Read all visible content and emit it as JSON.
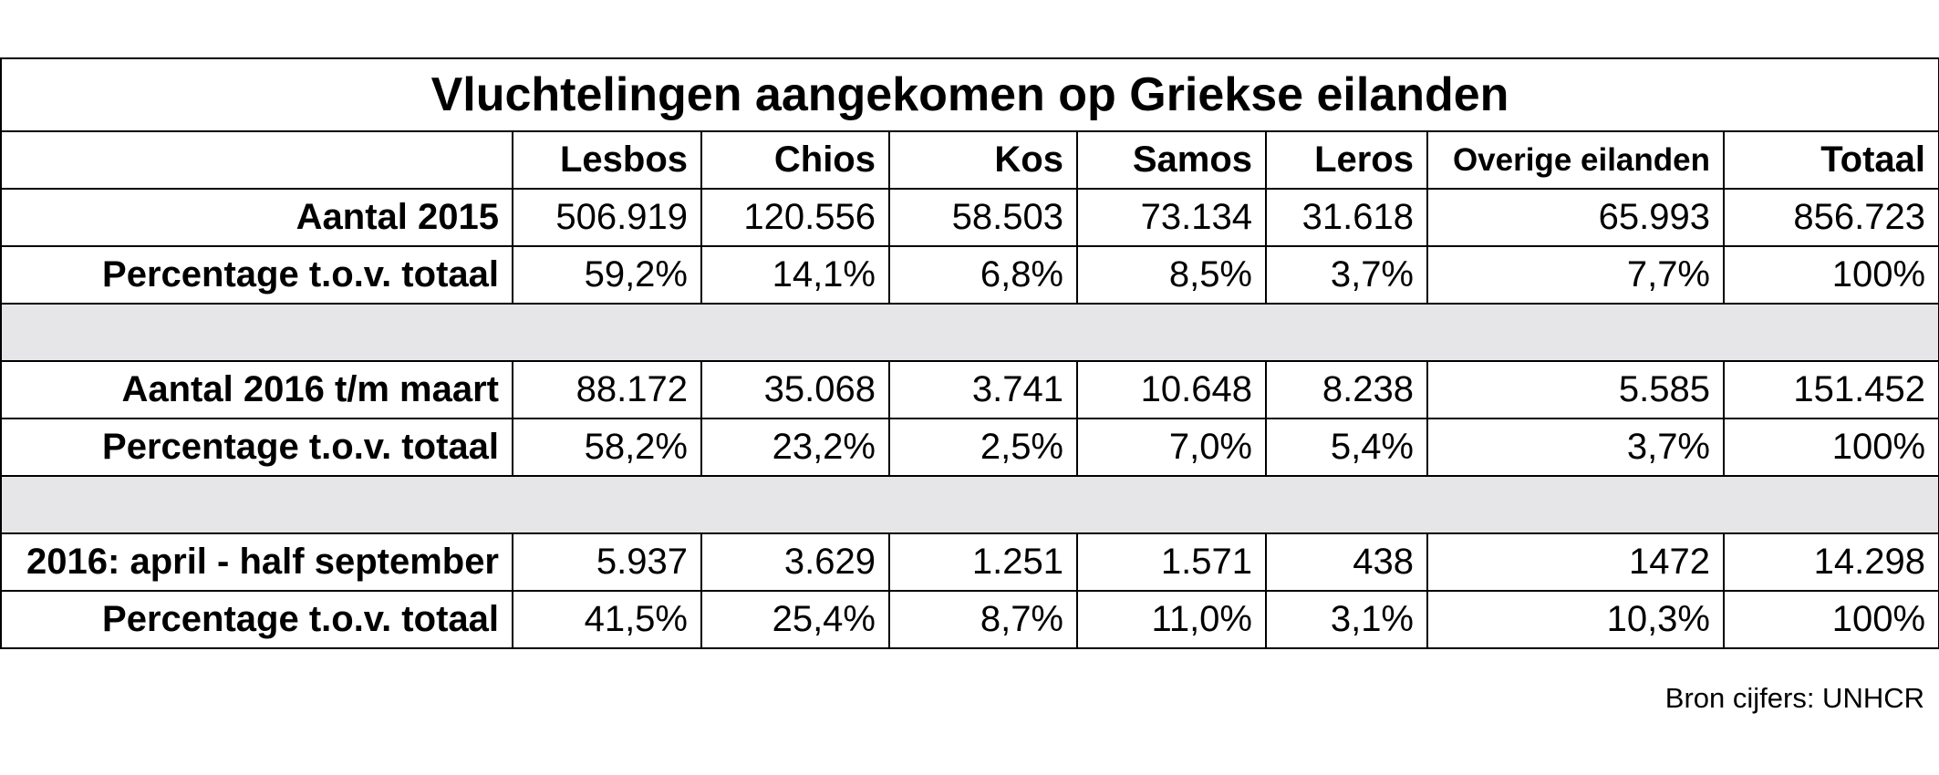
{
  "chart_data": {
    "type": "table",
    "title": "Vluchtelingen aangekomen op Griekse eilanden",
    "columns": [
      "",
      "Lesbos",
      "Chios",
      "Kos",
      "Samos",
      "Leros",
      "Overige eilanden",
      "Totaal"
    ],
    "rows": [
      {
        "label": "Aantal 2015",
        "cells": [
          "506.919",
          "120.556",
          "58.503",
          "73.134",
          "31.618",
          "65.993",
          "856.723"
        ]
      },
      {
        "label": "Percentage t.o.v. totaal",
        "cells": [
          "59,2%",
          "14,1%",
          "6,8%",
          "8,5%",
          "3,7%",
          "7,7%",
          "100%"
        ]
      },
      {
        "label": "Aantal 2016 t/m maart",
        "cells": [
          "88.172",
          "35.068",
          "3.741",
          "10.648",
          "8.238",
          "5.585",
          "151.452"
        ]
      },
      {
        "label": "Percentage t.o.v. totaal",
        "cells": [
          "58,2%",
          "23,2%",
          "2,5%",
          "7,0%",
          "5,4%",
          "3,7%",
          "100%"
        ]
      },
      {
        "label": "2016: april - half september",
        "cells": [
          "5.937",
          "3.629",
          "1.251",
          "1.571",
          "438",
          "1472",
          "14.298"
        ]
      },
      {
        "label": "Percentage t.o.v. totaal",
        "cells": [
          "41,5%",
          "25,4%",
          "8,7%",
          "11,0%",
          "3,1%",
          "10,3%",
          "100%"
        ]
      }
    ],
    "spacer_color": "#e6e6e8",
    "source": "Bron cijfers: UNHCR"
  }
}
